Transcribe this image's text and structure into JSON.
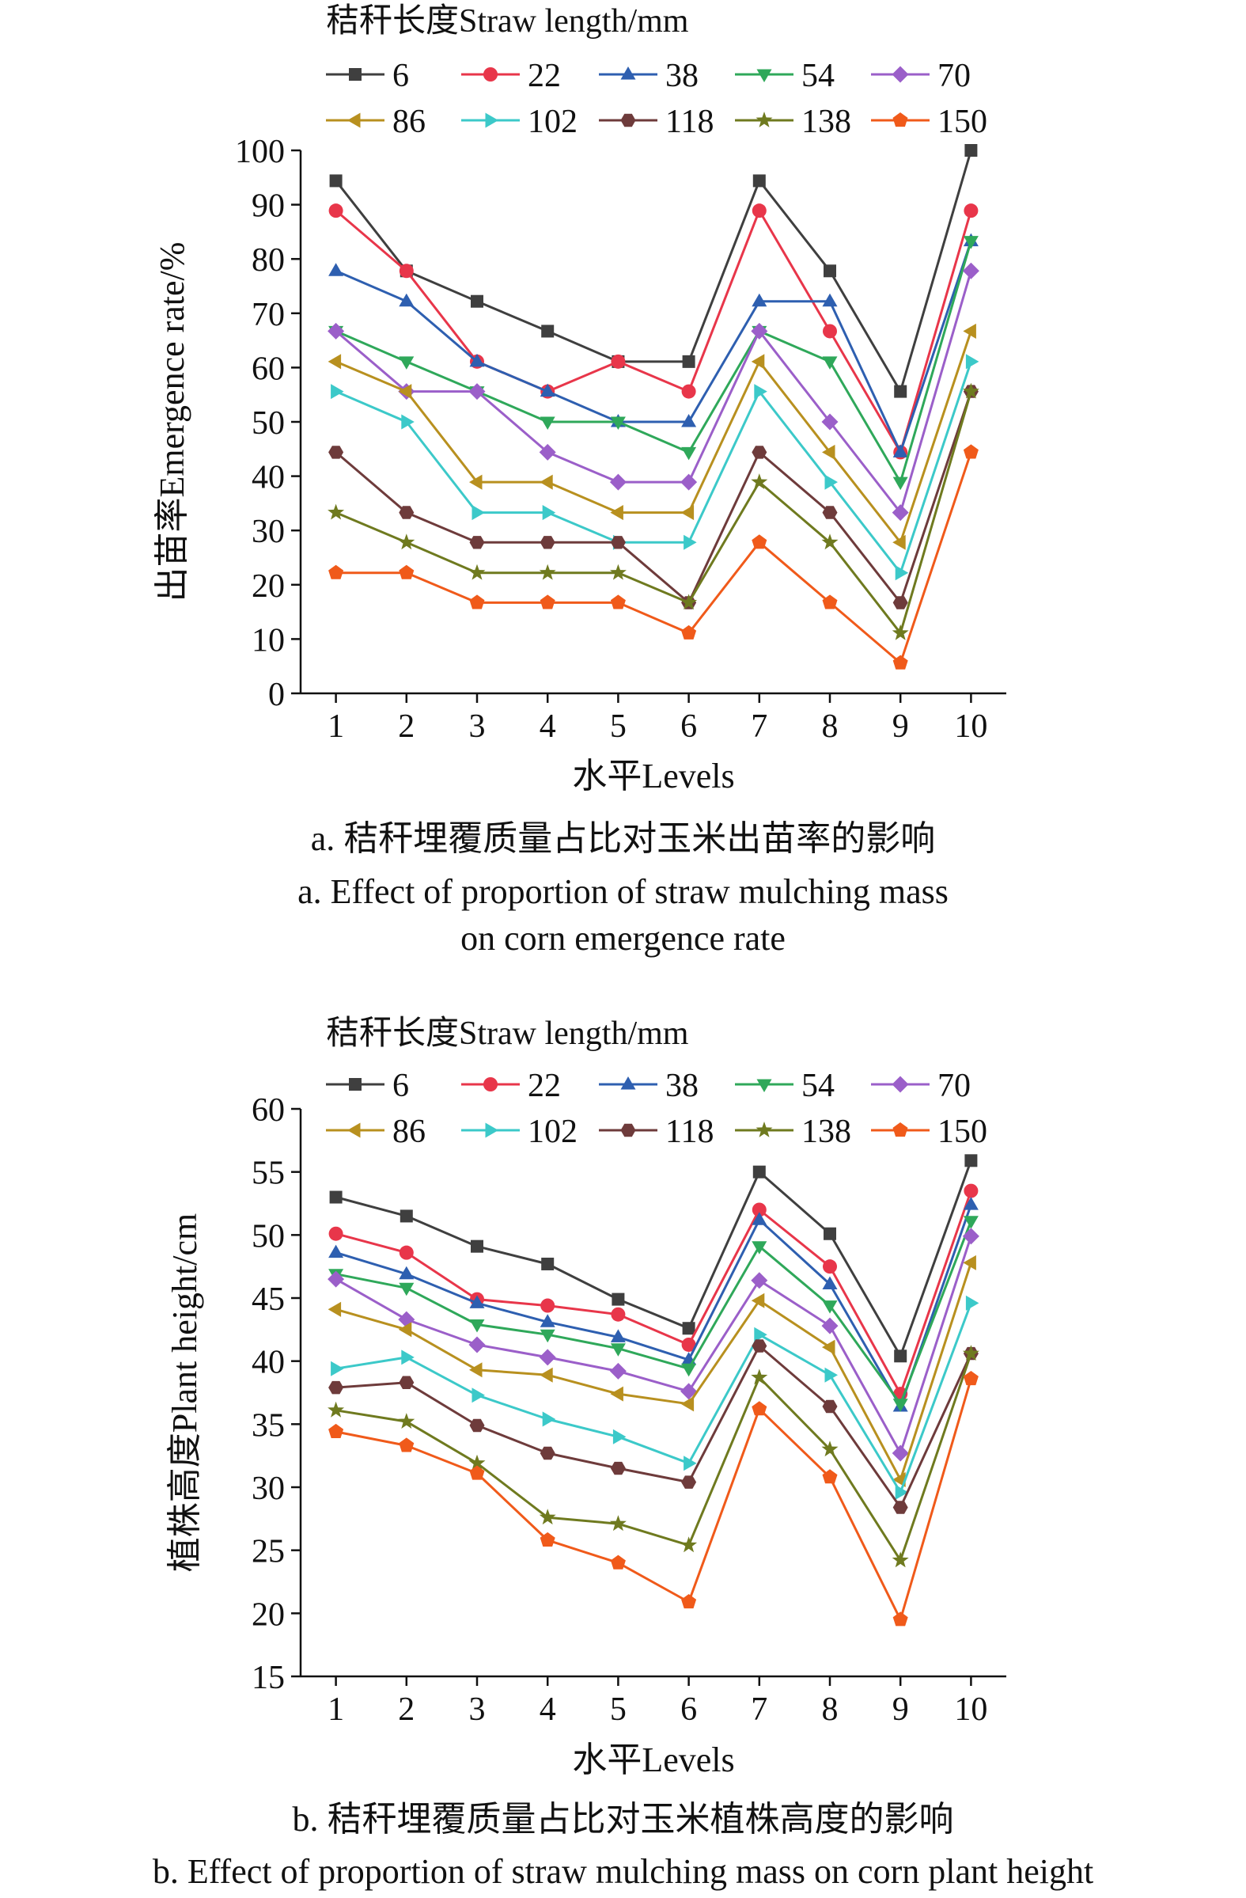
{
  "legend_title": "秸秆长度Straw length/mm",
  "palette": {
    "6": "#3f3f3f",
    "22": "#e8364a",
    "38": "#2e5fb0",
    "54": "#2fa85a",
    "70": "#9b5fc9",
    "86": "#b8901f",
    "102": "#3cc9c9",
    "118": "#6e3b3b",
    "138": "#6f7a1f",
    "150": "#f05a1a"
  },
  "markers": {
    "6": "square",
    "22": "circle",
    "38": "triangle-up",
    "54": "triangle-down",
    "70": "diamond",
    "86": "triangle-left",
    "102": "triangle-right",
    "118": "hexagon",
    "138": "star",
    "150": "pentagon"
  },
  "chart_data": [
    {
      "type": "line",
      "xlabel": "水平Levels",
      "ylabel": "出苗率Emergence rate/%",
      "x": [
        1,
        2,
        3,
        4,
        5,
        6,
        7,
        8,
        9,
        10
      ],
      "ylim": [
        0,
        100
      ],
      "yticks": [
        0,
        10,
        20,
        30,
        40,
        50,
        60,
        70,
        80,
        90,
        100
      ],
      "grid": false,
      "legend_placement": "top",
      "series": [
        {
          "name": "6",
          "values": [
            94.4,
            77.8,
            72.2,
            66.7,
            61.1,
            61.1,
            94.4,
            77.8,
            55.6,
            100.0
          ]
        },
        {
          "name": "22",
          "values": [
            88.9,
            77.8,
            61.1,
            55.6,
            61.1,
            55.6,
            88.9,
            66.7,
            44.4,
            88.9
          ]
        },
        {
          "name": "38",
          "values": [
            77.8,
            72.2,
            61.1,
            55.6,
            50.0,
            50.0,
            72.2,
            72.2,
            44.4,
            83.3
          ]
        },
        {
          "name": "54",
          "values": [
            66.7,
            61.1,
            55.6,
            50.0,
            50.0,
            44.4,
            66.7,
            61.1,
            38.9,
            83.3
          ]
        },
        {
          "name": "70",
          "values": [
            66.7,
            55.6,
            55.6,
            44.4,
            38.9,
            38.9,
            66.7,
            50.0,
            33.3,
            77.8
          ]
        },
        {
          "name": "86",
          "values": [
            61.1,
            55.6,
            38.9,
            38.9,
            33.3,
            33.3,
            61.1,
            44.4,
            27.8,
            66.7
          ]
        },
        {
          "name": "102",
          "values": [
            55.6,
            50.0,
            33.3,
            33.3,
            27.8,
            27.8,
            55.6,
            38.9,
            22.2,
            61.1
          ]
        },
        {
          "name": "118",
          "values": [
            44.4,
            33.3,
            27.8,
            27.8,
            27.8,
            16.7,
            44.4,
            33.3,
            16.7,
            55.6
          ]
        },
        {
          "name": "138",
          "values": [
            33.3,
            27.8,
            22.2,
            22.2,
            22.2,
            16.7,
            38.9,
            27.8,
            11.1,
            55.6
          ]
        },
        {
          "name": "150",
          "values": [
            22.2,
            22.2,
            16.7,
            16.7,
            16.7,
            11.1,
            27.8,
            16.7,
            5.6,
            44.4
          ]
        }
      ],
      "caption_cn": "a.  秸秆埋覆质量占比对玉米出苗率的影响",
      "caption_en_1": "a.  Effect of proportion of straw mulching mass",
      "caption_en_2": "on corn emergence rate"
    },
    {
      "type": "line",
      "xlabel": "水平Levels",
      "ylabel": "植株高度Plant height/cm",
      "x": [
        1,
        2,
        3,
        4,
        5,
        6,
        7,
        8,
        9,
        10
      ],
      "ylim": [
        15,
        60
      ],
      "yticks": [
        15,
        20,
        25,
        30,
        35,
        40,
        45,
        50,
        55,
        60
      ],
      "grid": false,
      "legend_placement": "top",
      "series": [
        {
          "name": "6",
          "values": [
            53.0,
            51.5,
            49.1,
            47.7,
            44.9,
            42.6,
            55.0,
            50.1,
            40.4,
            55.9
          ]
        },
        {
          "name": "22",
          "values": [
            50.1,
            48.6,
            44.9,
            44.4,
            43.7,
            41.3,
            52.0,
            47.5,
            37.4,
            53.5
          ]
        },
        {
          "name": "38",
          "values": [
            48.6,
            46.9,
            44.6,
            43.1,
            41.9,
            40.1,
            51.2,
            46.1,
            36.4,
            52.4
          ]
        },
        {
          "name": "54",
          "values": [
            46.9,
            45.8,
            42.9,
            42.1,
            41.0,
            39.4,
            49.1,
            44.4,
            36.6,
            51.1
          ]
        },
        {
          "name": "70",
          "values": [
            46.5,
            43.3,
            41.3,
            40.3,
            39.2,
            37.6,
            46.4,
            42.8,
            32.7,
            49.9
          ]
        },
        {
          "name": "86",
          "values": [
            44.1,
            42.5,
            39.3,
            38.9,
            37.4,
            36.6,
            44.8,
            41.1,
            30.6,
            47.8
          ]
        },
        {
          "name": "102",
          "values": [
            39.4,
            40.3,
            37.3,
            35.4,
            34.0,
            31.9,
            42.1,
            38.9,
            29.6,
            44.6
          ]
        },
        {
          "name": "118",
          "values": [
            37.9,
            38.3,
            34.9,
            32.7,
            31.5,
            30.4,
            41.2,
            36.4,
            28.4,
            40.6
          ]
        },
        {
          "name": "138",
          "values": [
            36.1,
            35.2,
            31.9,
            27.6,
            27.1,
            25.4,
            38.7,
            33.0,
            24.2,
            40.6
          ]
        },
        {
          "name": "150",
          "values": [
            34.4,
            33.3,
            31.1,
            25.8,
            24.0,
            20.9,
            36.2,
            30.8,
            19.5,
            38.6
          ]
        }
      ],
      "caption_cn": "b.  秸秆埋覆质量占比对玉米植株高度的影响",
      "caption_en_1": "b.  Effect of proportion of straw mulching mass on corn plant height"
    }
  ]
}
